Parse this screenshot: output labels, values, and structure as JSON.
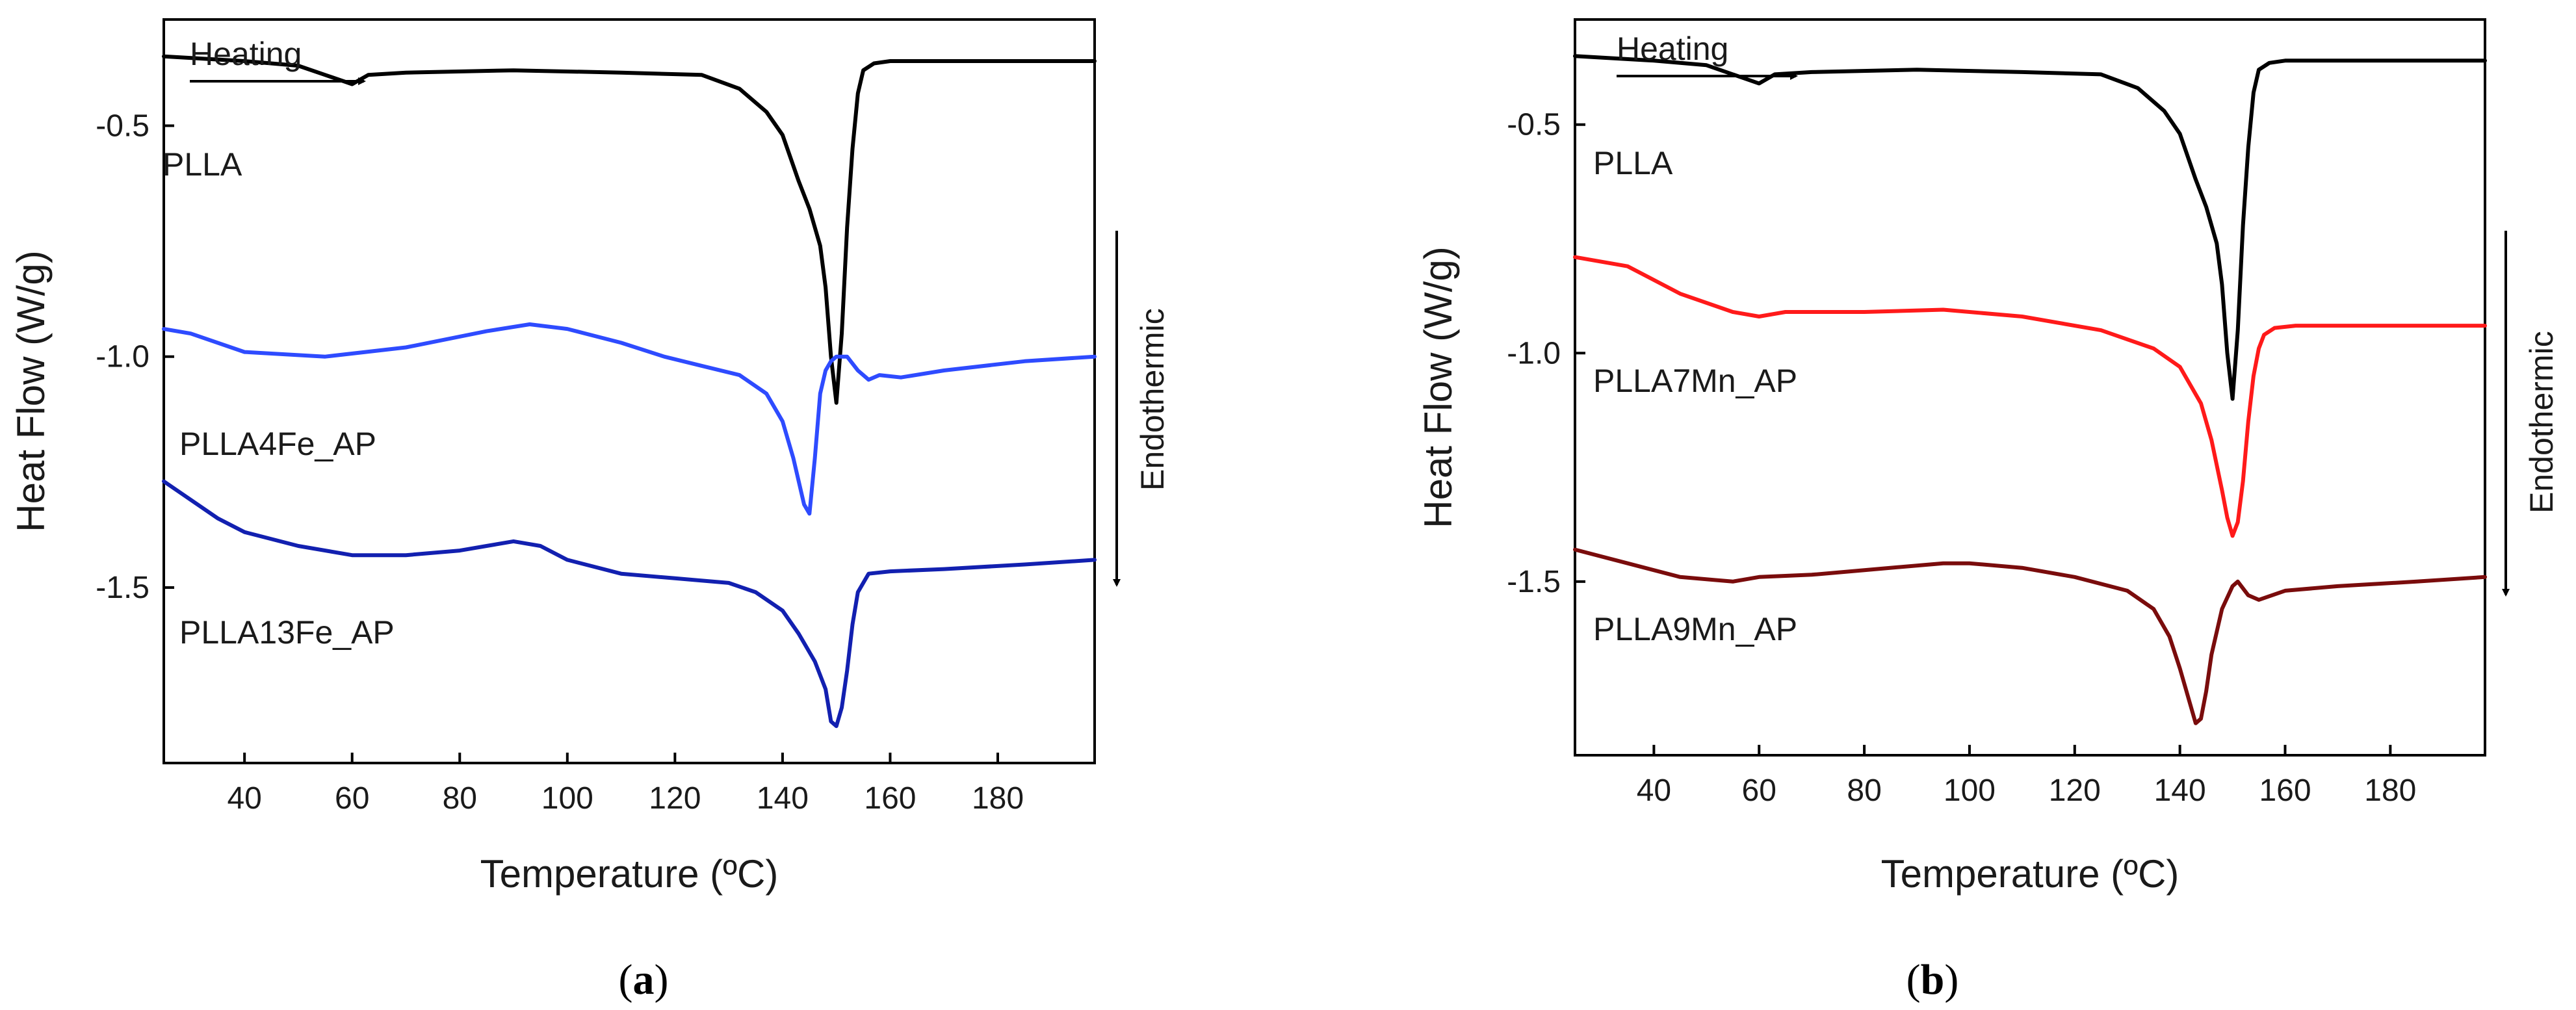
{
  "chart_data": [
    {
      "type": "line",
      "panel_label": "a",
      "xlabel": "Temperature (ºC)",
      "ylabel": "Heat Flow (W/g)",
      "xlim": [
        25,
        198
      ],
      "ylim": [
        -1.88,
        -0.27
      ],
      "xticks": [
        40,
        60,
        80,
        100,
        120,
        140,
        160,
        180
      ],
      "yticks": [
        -0.5,
        -1.0,
        -1.5
      ],
      "ytick_labels": [
        "-0.5",
        "-1.0",
        "-1.5"
      ],
      "annotations": {
        "heating": "Heating",
        "endothermic": "Endothermic"
      },
      "series": [
        {
          "name": "PLLA",
          "color": "#000000",
          "x": [
            25,
            40,
            50,
            55,
            60,
            63,
            70,
            90,
            110,
            125,
            132,
            137,
            140,
            143,
            145,
            147,
            148,
            149,
            150,
            151,
            152,
            153,
            154,
            155,
            157,
            160,
            170,
            185,
            198
          ],
          "y": [
            -0.35,
            -0.36,
            -0.37,
            -0.39,
            -0.41,
            -0.39,
            -0.385,
            -0.38,
            -0.385,
            -0.39,
            -0.42,
            -0.47,
            -0.52,
            -0.62,
            -0.68,
            -0.76,
            -0.85,
            -1.0,
            -1.1,
            -0.95,
            -0.72,
            -0.55,
            -0.43,
            -0.38,
            -0.365,
            -0.36,
            -0.36,
            -0.36,
            -0.36
          ]
        },
        {
          "name": "PLLA4Fe_AP",
          "color": "#2e4bff",
          "x": [
            25,
            30,
            40,
            55,
            70,
            85,
            93,
            100,
            110,
            118,
            125,
            132,
            137,
            140,
            142,
            144,
            145,
            146,
            147,
            148,
            149,
            150,
            152,
            154,
            156,
            158,
            162,
            170,
            185,
            198
          ],
          "y": [
            -0.94,
            -0.95,
            -0.99,
            -1.0,
            -0.98,
            -0.945,
            -0.93,
            -0.94,
            -0.97,
            -1.0,
            -1.02,
            -1.04,
            -1.08,
            -1.14,
            -1.22,
            -1.32,
            -1.34,
            -1.22,
            -1.08,
            -1.03,
            -1.01,
            -1.0,
            -1.0,
            -1.03,
            -1.05,
            -1.04,
            -1.045,
            -1.03,
            -1.01,
            -1.0
          ]
        },
        {
          "name": "PLLA13Fe_AP",
          "color": "#1220b0",
          "x": [
            25,
            30,
            35,
            40,
            50,
            60,
            70,
            80,
            85,
            90,
            95,
            100,
            110,
            120,
            130,
            135,
            140,
            143,
            146,
            148,
            149,
            150,
            151,
            152,
            153,
            154,
            156,
            160,
            170,
            185,
            198
          ],
          "y": [
            -1.27,
            -1.31,
            -1.35,
            -1.38,
            -1.41,
            -1.43,
            -1.43,
            -1.42,
            -1.41,
            -1.4,
            -1.41,
            -1.44,
            -1.47,
            -1.48,
            -1.49,
            -1.51,
            -1.55,
            -1.6,
            -1.66,
            -1.72,
            -1.79,
            -1.8,
            -1.76,
            -1.68,
            -1.58,
            -1.51,
            -1.47,
            -1.465,
            -1.46,
            -1.45,
            -1.44
          ]
        }
      ],
      "series_labels": [
        "PLLA",
        "PLLA4Fe_AP",
        "PLLA13Fe_AP"
      ]
    },
    {
      "type": "line",
      "panel_label": "b",
      "xlabel": "Temperature (ºC)",
      "ylabel": "Heat Flow (W/g)",
      "xlim": [
        25,
        198
      ],
      "ylim": [
        -1.88,
        -0.27
      ],
      "xticks": [
        40,
        60,
        80,
        100,
        120,
        140,
        160,
        180
      ],
      "yticks": [
        -0.5,
        -1.0,
        -1.5
      ],
      "ytick_labels": [
        "-0.5",
        "-1.0",
        "-1.5"
      ],
      "annotations": {
        "heating": "Heating",
        "endothermic": "Endothermic"
      },
      "series": [
        {
          "name": "PLLA",
          "color": "#000000",
          "x": [
            25,
            40,
            50,
            55,
            60,
            63,
            70,
            90,
            110,
            125,
            132,
            137,
            140,
            143,
            145,
            147,
            148,
            149,
            150,
            151,
            152,
            153,
            154,
            155,
            157,
            160,
            170,
            185,
            198
          ],
          "y": [
            -0.35,
            -0.36,
            -0.37,
            -0.39,
            -0.41,
            -0.39,
            -0.385,
            -0.38,
            -0.385,
            -0.39,
            -0.42,
            -0.47,
            -0.52,
            -0.62,
            -0.68,
            -0.76,
            -0.85,
            -1.0,
            -1.1,
            -0.95,
            -0.72,
            -0.55,
            -0.43,
            -0.38,
            -0.365,
            -0.36,
            -0.36,
            -0.36,
            -0.36
          ]
        },
        {
          "name": "PLLA7Mn_AP",
          "color": "#ff1a1a",
          "x": [
            25,
            35,
            45,
            55,
            60,
            65,
            80,
            95,
            110,
            125,
            135,
            140,
            144,
            146,
            148,
            149,
            150,
            151,
            152,
            153,
            154,
            155,
            156,
            158,
            162,
            170,
            185,
            198
          ],
          "y": [
            -0.79,
            -0.81,
            -0.87,
            -0.91,
            -0.92,
            -0.91,
            -0.91,
            -0.905,
            -0.92,
            -0.95,
            -0.99,
            -1.03,
            -1.11,
            -1.19,
            -1.3,
            -1.36,
            -1.4,
            -1.37,
            -1.28,
            -1.15,
            -1.05,
            -0.99,
            -0.96,
            -0.945,
            -0.94,
            -0.94,
            -0.94,
            -0.94
          ]
        },
        {
          "name": "PLLA9Mn_AP",
          "color": "#7a0c0c",
          "x": [
            25,
            35,
            45,
            55,
            60,
            70,
            80,
            95,
            100,
            110,
            120,
            130,
            135,
            138,
            140,
            142,
            143,
            144,
            145,
            146,
            148,
            150,
            151,
            153,
            155,
            160,
            170,
            185,
            198
          ],
          "y": [
            -1.43,
            -1.46,
            -1.49,
            -1.5,
            -1.49,
            -1.485,
            -1.475,
            -1.46,
            -1.46,
            -1.47,
            -1.49,
            -1.52,
            -1.56,
            -1.62,
            -1.69,
            -1.77,
            -1.81,
            -1.8,
            -1.74,
            -1.66,
            -1.56,
            -1.51,
            -1.5,
            -1.53,
            -1.54,
            -1.52,
            -1.51,
            -1.5,
            -1.49
          ]
        }
      ],
      "series_labels": [
        "PLLA",
        "PLLA7Mn_AP",
        "PLLA9Mn_AP"
      ]
    }
  ]
}
